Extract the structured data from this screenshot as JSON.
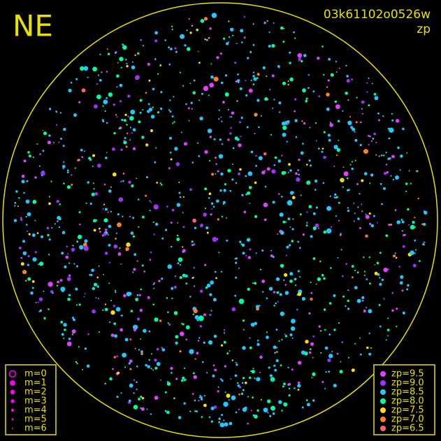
{
  "header": {
    "direction": "NE",
    "image_id": "03k61102o0526w",
    "mode": "zp"
  },
  "magnitude_legend": {
    "color": "#ff00ff",
    "items": [
      "m=0",
      "m=1",
      "m=2",
      "m=3",
      "m=4",
      "m=5",
      "m=6"
    ]
  },
  "zp_legend": {
    "items": [
      {
        "label": "zp=9.5",
        "color": "#e040ff"
      },
      {
        "label": "zp=9.0",
        "color": "#a030ff"
      },
      {
        "label": "zp=8.5",
        "color": "#20c8ff"
      },
      {
        "label": "zp=8.0",
        "color": "#00ffa0"
      },
      {
        "label": "zp=7.5",
        "color": "#ffe000"
      },
      {
        "label": "zp=7.0",
        "color": "#ff8020"
      },
      {
        "label": "zp=6.5",
        "color": "#ff6070"
      }
    ]
  },
  "frame_color": "#e8e000"
}
